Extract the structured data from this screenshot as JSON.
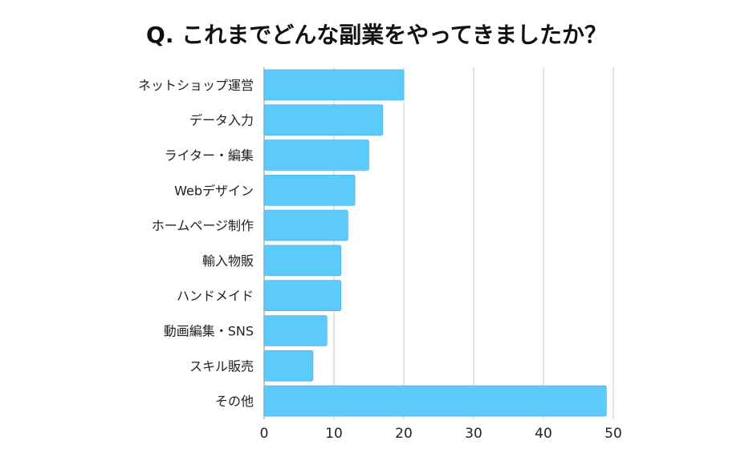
{
  "chart_data": {
    "type": "bar",
    "orientation": "horizontal",
    "title": "Q. これまでどんな副業をやってきましたか？",
    "categories": [
      "ネットショップ運営",
      "データ入力",
      "ライター・編集",
      "Webデザイン",
      "ホームページ制作",
      "輸入物販",
      "ハンドメイド",
      "動画編集・SNS",
      "スキル販売",
      "その他"
    ],
    "values": [
      20,
      17,
      15,
      13,
      12,
      11,
      11,
      9,
      7,
      49
    ],
    "xlim": [
      0,
      50
    ],
    "xticks": [
      "0",
      "10",
      "20",
      "30",
      "40",
      "50"
    ],
    "grid": "vertical",
    "colors": {
      "bar": "#5ccbfb",
      "bar_border": "#3aaee6",
      "grid": "#c8c8c8",
      "text": "#222222"
    }
  }
}
